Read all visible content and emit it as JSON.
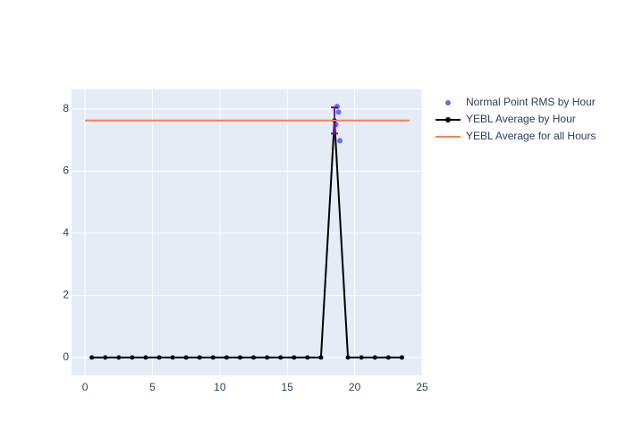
{
  "chart_data": {
    "type": "scatter",
    "xlim": [
      -1,
      25
    ],
    "xticks": [
      0,
      5,
      10,
      15,
      20,
      25
    ],
    "ylim": [
      -0.58,
      8.63
    ],
    "yticks": [
      0,
      2,
      4,
      6,
      8
    ],
    "grid": true,
    "series": [
      {
        "name": "Normal Point RMS by Hour",
        "color": "#636efa",
        "mode": "markers",
        "x": [
          18.7,
          18.8,
          18.6,
          18.9
        ],
        "values": [
          8.08,
          7.9,
          7.5,
          6.98
        ]
      },
      {
        "name": "YEBL Average by Hour",
        "color": "#000000",
        "mode": "lines+markers",
        "error_color": "#6a0dad",
        "x": [
          0.5,
          1.5,
          2.5,
          3.5,
          4.5,
          5.5,
          6.5,
          7.5,
          8.5,
          9.5,
          10.5,
          11.5,
          12.5,
          13.5,
          14.5,
          15.5,
          16.5,
          17.5,
          18.5,
          19.5,
          20.5,
          21.5,
          22.5,
          23.5
        ],
        "values": [
          0,
          0,
          0,
          0,
          0,
          0,
          0,
          0,
          0,
          0,
          0,
          0,
          0,
          0,
          0,
          0,
          0,
          0,
          7.63,
          0,
          0,
          0,
          0,
          0
        ],
        "errors": [
          null,
          null,
          null,
          null,
          null,
          null,
          null,
          null,
          null,
          null,
          null,
          null,
          null,
          null,
          null,
          null,
          null,
          null,
          0.42,
          null,
          null,
          null,
          null,
          null
        ]
      },
      {
        "name": "YEBL Average for all Hours",
        "color": "#ff7f50",
        "mode": "lines",
        "x": [
          0,
          24.07
        ],
        "values": [
          7.63,
          7.63
        ]
      }
    ]
  }
}
